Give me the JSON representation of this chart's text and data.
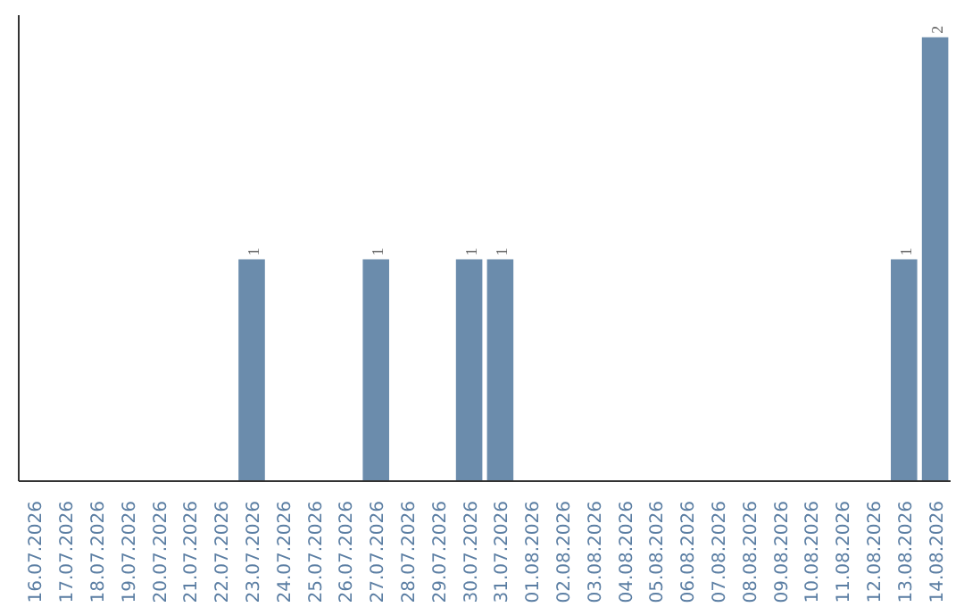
{
  "chart_data": {
    "type": "bar",
    "categories": [
      "16.07.2026",
      "17.07.2026",
      "18.07.2026",
      "19.07.2026",
      "20.07.2026",
      "21.07.2026",
      "22.07.2026",
      "23.07.2026",
      "24.07.2026",
      "25.07.2026",
      "26.07.2026",
      "27.07.2026",
      "28.07.2026",
      "29.07.2026",
      "30.07.2026",
      "31.07.2026",
      "01.08.2026",
      "02.08.2026",
      "03.08.2026",
      "04.08.2026",
      "05.08.2026",
      "06.08.2026",
      "07.08.2026",
      "08.08.2026",
      "09.08.2026",
      "10.08.2026",
      "11.08.2026",
      "12.08.2026",
      "13.08.2026",
      "14.08.2026"
    ],
    "values": [
      0,
      0,
      0,
      0,
      0,
      0,
      0,
      1,
      0,
      0,
      0,
      1,
      0,
      0,
      1,
      1,
      0,
      0,
      0,
      0,
      0,
      0,
      0,
      0,
      0,
      0,
      0,
      0,
      1,
      2
    ],
    "value_labels": [
      null,
      null,
      null,
      null,
      null,
      null,
      null,
      "1",
      null,
      null,
      null,
      "1",
      null,
      null,
      "1",
      "1",
      null,
      null,
      null,
      null,
      null,
      null,
      null,
      null,
      null,
      null,
      null,
      null,
      "1",
      "2"
    ],
    "color": "#6b8cac"
  }
}
